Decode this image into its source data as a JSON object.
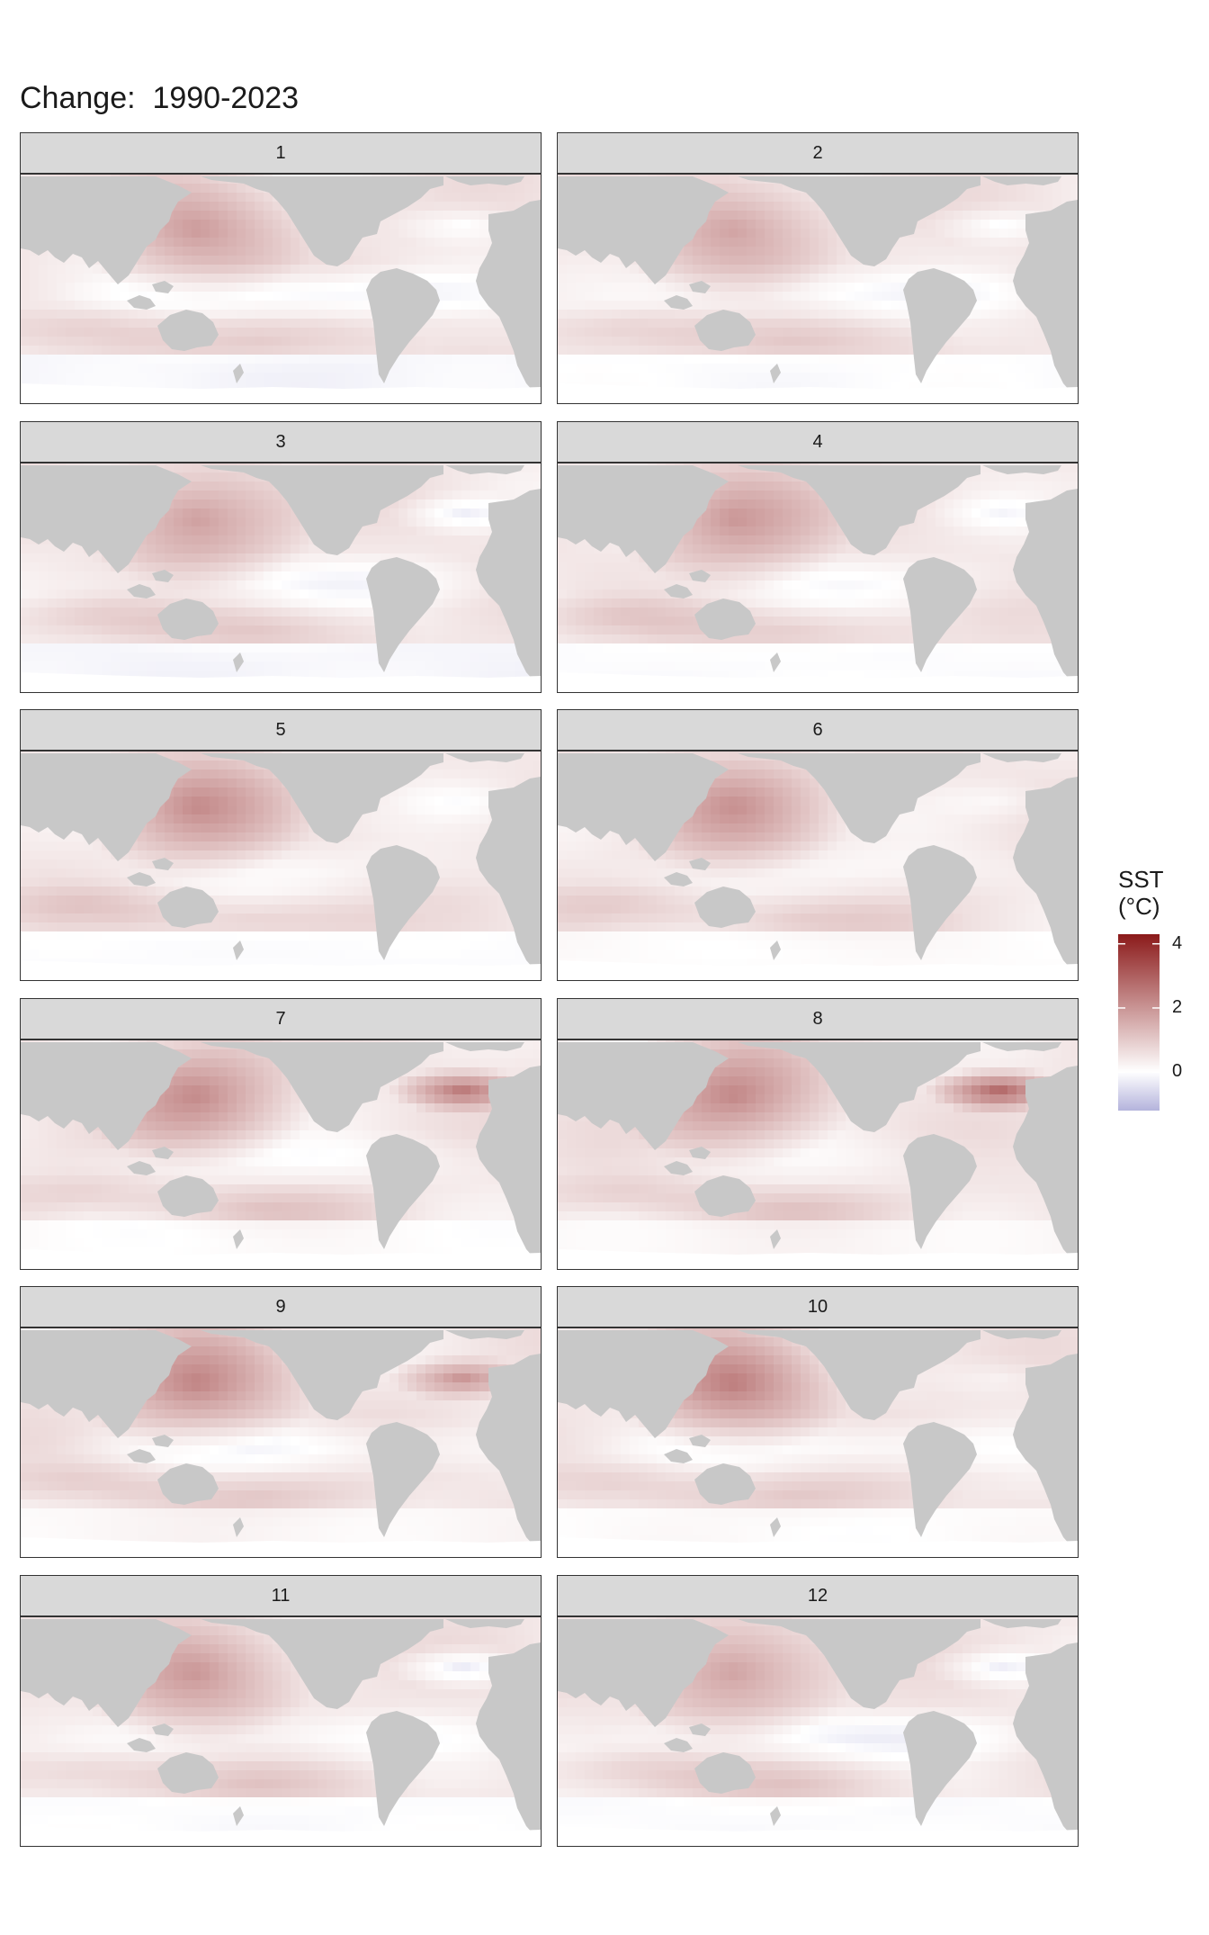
{
  "title": "Change:  1990-2023",
  "legend": {
    "title_line1": "SST",
    "title_line2": "(°C)",
    "ticks": [
      "4",
      "2",
      "0"
    ],
    "tick_values": [
      4,
      2,
      0
    ],
    "range": [
      -1.2,
      4.3
    ],
    "colors": {
      "low": "#b4b3dc",
      "mid": "#ffffff",
      "high": "#8b1a1a"
    }
  },
  "chart_data": {
    "type": "heatmap",
    "title": "Change:  1990-2023",
    "variable": "SST (°C)",
    "facets": [
      {
        "label": "1",
        "north_pacific": 1.7,
        "eq_pacific": -0.8,
        "north_atlantic": -0.5,
        "south_ocean": -0.3
      },
      {
        "label": "2",
        "north_pacific": 1.6,
        "eq_pacific": -0.6,
        "north_atlantic": -0.6,
        "south_ocean": -0.2
      },
      {
        "label": "3",
        "north_pacific": 1.8,
        "eq_pacific": -0.5,
        "north_atlantic": -0.7,
        "south_ocean": -0.3
      },
      {
        "label": "4",
        "north_pacific": 1.9,
        "eq_pacific": -0.4,
        "north_atlantic": -0.4,
        "south_ocean": -0.2
      },
      {
        "label": "5",
        "north_pacific": 1.9,
        "eq_pacific": -0.3,
        "north_atlantic": -0.3,
        "south_ocean": -0.2
      },
      {
        "label": "6",
        "north_pacific": 1.7,
        "eq_pacific": -0.3,
        "north_atlantic": -0.3,
        "south_ocean": -0.1
      },
      {
        "label": "7",
        "north_pacific": 2.0,
        "eq_pacific": -0.4,
        "north_atlantic": 2.0,
        "south_ocean": -0.1
      },
      {
        "label": "8",
        "north_pacific": 2.2,
        "eq_pacific": -0.2,
        "north_atlantic": 2.4,
        "south_ocean": 0.0
      },
      {
        "label": "9",
        "north_pacific": 2.2,
        "eq_pacific": -0.6,
        "north_atlantic": 1.6,
        "south_ocean": 0.0
      },
      {
        "label": "10",
        "north_pacific": 2.3,
        "eq_pacific": -0.6,
        "north_atlantic": -0.3,
        "south_ocean": -0.1
      },
      {
        "label": "11",
        "north_pacific": 1.9,
        "eq_pacific": -0.5,
        "north_atlantic": -1.0,
        "south_ocean": -0.2
      },
      {
        "label": "12",
        "north_pacific": 1.8,
        "eq_pacific": -0.7,
        "north_atlantic": -0.8,
        "south_ocean": -0.2
      }
    ]
  }
}
